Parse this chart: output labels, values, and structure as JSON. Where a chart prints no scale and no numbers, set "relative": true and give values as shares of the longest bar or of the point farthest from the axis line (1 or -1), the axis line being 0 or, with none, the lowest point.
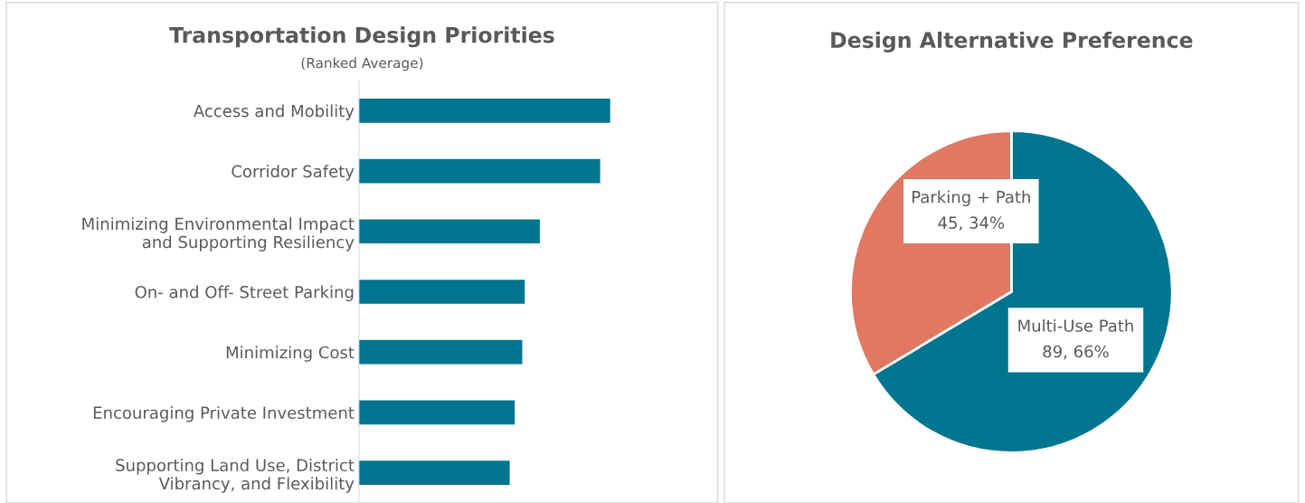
{
  "chart_data": [
    {
      "type": "bar",
      "orientation": "horizontal",
      "relative": true,
      "title": "Transportation Design Priorities",
      "subtitle": "(Ranked Average)",
      "categories": [
        "Access and Mobility",
        "Corridor Safety",
        "Minimizing Environmental Impact\nand Supporting Resiliency",
        "On- and Off- Street Parking",
        "Minimizing Cost",
        "Encouraging Private Investment",
        "Supporting Land Use, District\nVibrancy, and Flexibility"
      ],
      "values": [
        1,
        0.96,
        0.72,
        0.66,
        0.65,
        0.62,
        0.6
      ],
      "color": "#00758f",
      "grid": false,
      "legend": false
    },
    {
      "type": "pie",
      "title": "Design Alternative Preference",
      "categories": [
        "Multi-Use Path",
        "Parking + Path"
      ],
      "values": [
        89,
        45
      ],
      "colors": [
        "#00758f",
        "#e07862"
      ],
      "value_labels": [
        "89, 66%",
        "45, 34%"
      ],
      "legend": false
    }
  ]
}
